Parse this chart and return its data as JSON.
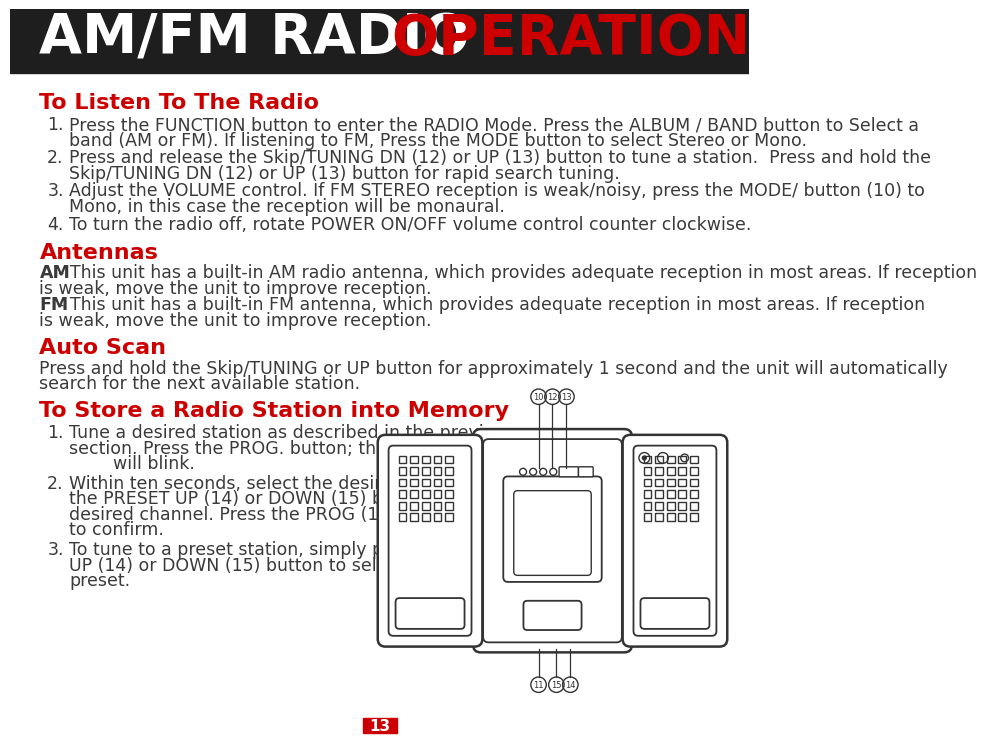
{
  "title_white": "AM/FM RADIO ",
  "title_red": "OPERATION",
  "header_bg": "#1e1e1e",
  "red_color": "#cc0000",
  "dark_color": "#3a3a3a",
  "section1_title": "To Listen To The Radio",
  "section1_items": [
    [
      "Press the FUNCTION button to enter the RADIO Mode. Press the ALBUM / BAND button to Select a",
      "band (AM or FM). If listening to FM, Press the MODE button to select Stereo or Mono."
    ],
    [
      "Press and release the Skip/TUNING DN (12) or UP (13) button to tune a station.  Press and hold the",
      "Skip/TUNING DN (12) or UP (13) button for rapid search tuning."
    ],
    [
      "Adjust the VOLUME control. If FM STEREO reception is weak/noisy, press the MODE/ button (10) to",
      "Mono, in this case the reception will be monaural."
    ],
    [
      "To turn the radio off, rotate POWER ON/OFF volume control counter clockwise."
    ]
  ],
  "section2_title": "Antennas",
  "section3_title": "Auto Scan",
  "section3_para": [
    "Press and hold the Skip/TUNING or UP button for approximately 1 second and the unit will automatically",
    "search for the next available station."
  ],
  "section4_title": "To Store a Radio Station into Memory",
  "section4_items": [
    [
      "Tune a desired station as described in the previous",
      "section. Press the PROG. button; the preset numbers",
      "        will blink."
    ],
    [
      "Within ten seconds, select the desired preset using",
      "the PRESET UP (14) or DOWN (15) button to set the",
      "desired channel. Press the PROG (11) button",
      "to confirm."
    ],
    [
      "To tune to a preset station, simply press the PRESET",
      "UP (14) or DOWN (15) button to select the desired",
      "preset."
    ]
  ],
  "page_num": "13",
  "page_bg": "#cc0000"
}
